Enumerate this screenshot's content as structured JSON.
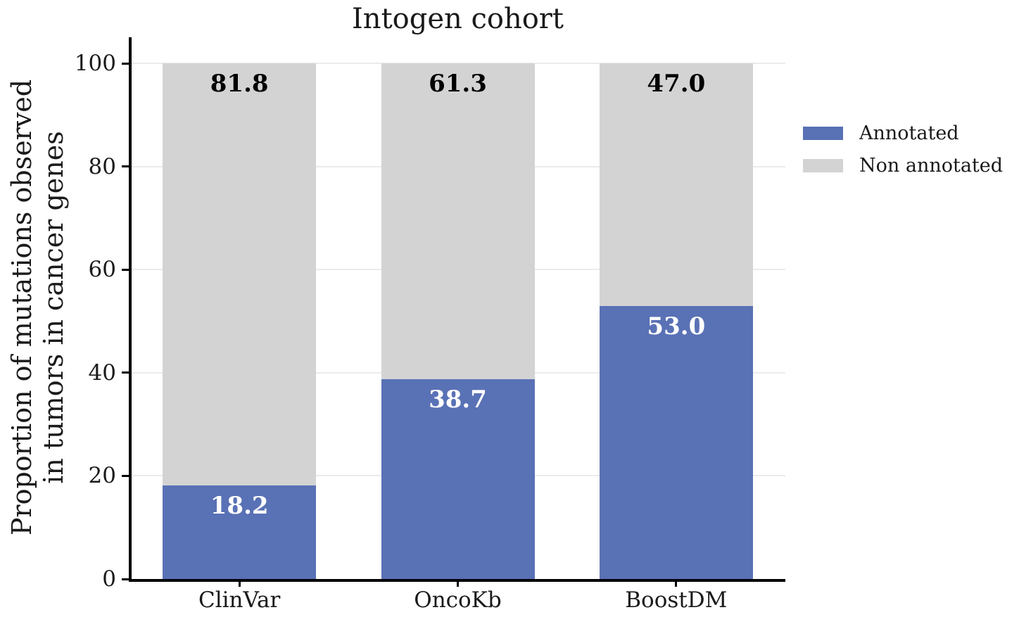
{
  "chart_data": {
    "type": "bar",
    "subtype": "stacked",
    "title": "Intogen cohort",
    "categories": [
      "ClinVar",
      "OncoKb",
      "BoostDM"
    ],
    "series": [
      {
        "name": "Annotated",
        "color": "#5971b5",
        "label_color": "#ffffff",
        "values": [
          18.2,
          38.7,
          53.0
        ]
      },
      {
        "name": "Non annotated",
        "color": "#d3d3d3",
        "label_color": "#000000",
        "values": [
          81.8,
          61.3,
          47.0
        ]
      }
    ],
    "ylabel_lines": [
      "Proportion of mutations observed",
      "in tumors in cancer genes"
    ],
    "ylim": [
      0,
      100
    ],
    "yticks": [
      0,
      20,
      40,
      60,
      80,
      100
    ],
    "grid": "horizontal",
    "grid_color": "#ebebeb",
    "legend_position": "right-outside",
    "axis_color": "#000000"
  }
}
